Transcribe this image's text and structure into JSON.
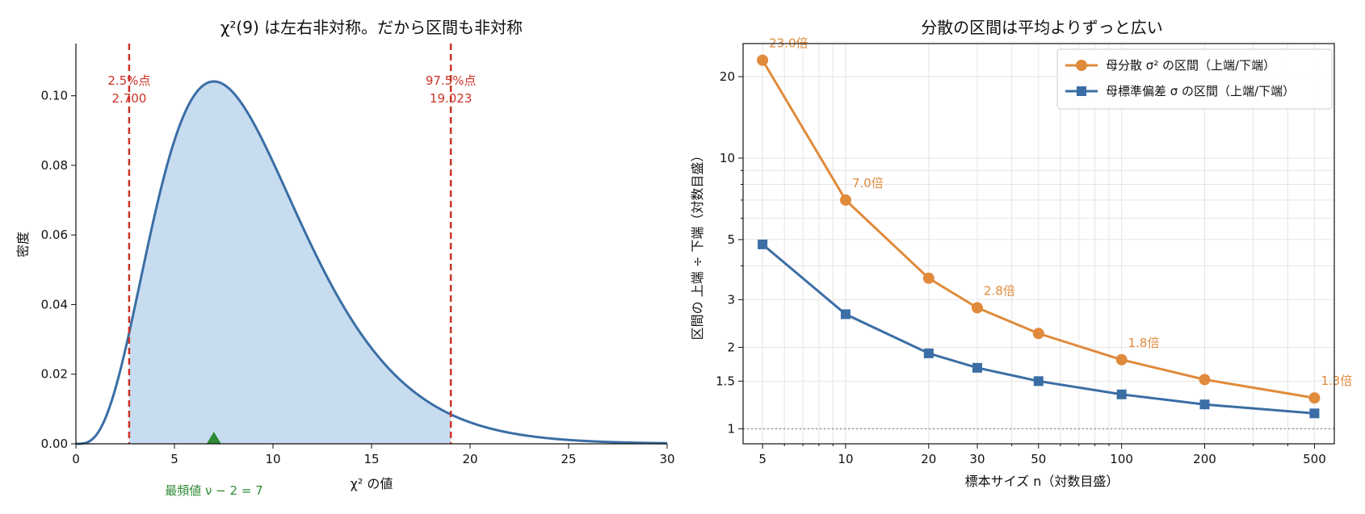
{
  "chart_data": [
    {
      "type": "area",
      "title": "χ²(9) は左右非対称。だから区間も非対称",
      "xlabel": "χ² の値",
      "ylabel": "密度",
      "xlim": [
        0,
        30
      ],
      "ylim": [
        0,
        0.115
      ],
      "x_ticks": [
        "0",
        "5",
        "10",
        "15",
        "20",
        "25",
        "30"
      ],
      "y_ticks": [
        "0.00",
        "0.02",
        "0.04",
        "0.06",
        "0.08",
        "0.10"
      ],
      "grid": false,
      "degrees_of_freedom": 9,
      "shaded_interval": [
        2.7,
        19.023
      ],
      "quantile_lines": [
        {
          "label": "2.5%点",
          "value_text": "2.700",
          "x": 2.7
        },
        {
          "label": "97.5%点",
          "value_text": "19.023",
          "x": 19.023
        }
      ],
      "mode": {
        "x": 7,
        "label": "最頻値 ν − 2 = 7"
      },
      "colors": {
        "curve": "#3a6ea5",
        "fill": "#c8dcf0",
        "quantile": "#cc3326",
        "mode": "#2e8b34"
      }
    },
    {
      "type": "line",
      "title": "分散の区間は平均よりずっと広い",
      "xlabel": "標本サイズ n（対数目盛）",
      "ylabel": "区間の 上端 ÷ 下端（対数目盛）",
      "x_scale": "log",
      "y_scale": "log",
      "x_ticks": [
        "5",
        "10",
        "20",
        "30",
        "50",
        "100",
        "200",
        "500"
      ],
      "y_ticks": [
        "1",
        "1.5",
        "2",
        "3",
        "5",
        "10",
        "20"
      ],
      "x": [
        5,
        10,
        20,
        30,
        50,
        100,
        200,
        500
      ],
      "grid": true,
      "legend_position": "top-right",
      "reference_line": 1,
      "series": [
        {
          "name": "母分散 σ² の区間（上端/下端）",
          "values": [
            23.0,
            7.0,
            3.6,
            2.8,
            2.25,
            1.8,
            1.52,
            1.3
          ],
          "marker": "circle",
          "color": "#e08a3c"
        },
        {
          "name": "母標準偏差 σ の区間（上端/下端）",
          "values": [
            4.8,
            2.65,
            1.9,
            1.68,
            1.5,
            1.34,
            1.23,
            1.14
          ],
          "marker": "square",
          "color": "#3a6ea5"
        }
      ],
      "annotations": [
        "23.0倍",
        "7.0倍",
        "2.8倍",
        "1.8倍",
        "1.3倍"
      ]
    }
  ]
}
